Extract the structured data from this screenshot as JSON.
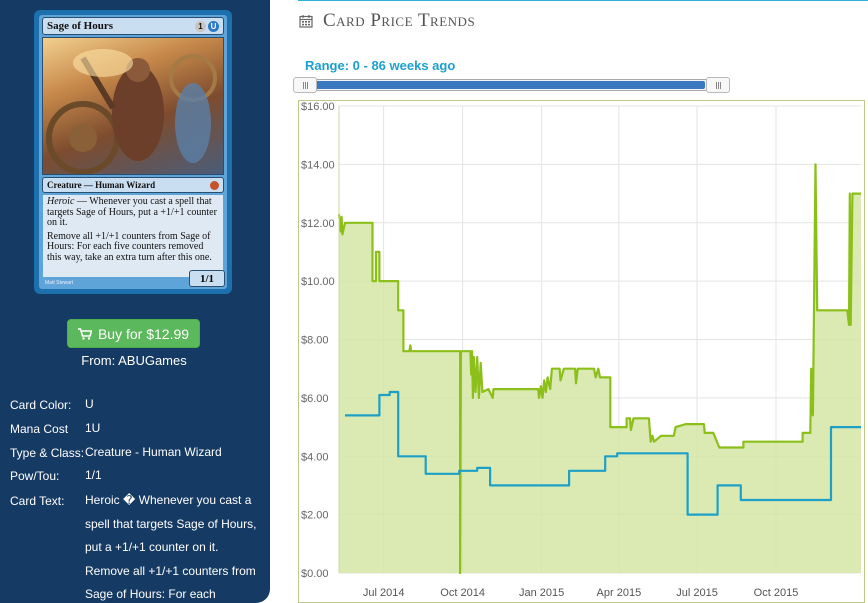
{
  "card": {
    "name": "Sage of Hours",
    "mana_symbols": [
      "1",
      "U"
    ],
    "type_line": "Creature — Human Wizard",
    "rules_text_1_keyword": "Heroic",
    "rules_text_1": " — Whenever you cast a spell that targets Sage of Hours, put a +1/+1 counter on it.",
    "rules_text_2": "Remove all +1/+1 counters from Sage of Hours: For each five counters removed this way, take an extra turn after this one.",
    "pt": "1/1",
    "artist": "Matt Stewart"
  },
  "buy": {
    "label": "Buy for $12.99",
    "from": "From: ABUGames"
  },
  "info": [
    {
      "label": "Card Color:",
      "value": "U"
    },
    {
      "label": "Mana Cost",
      "value": "1U"
    },
    {
      "label": "Type & Class:",
      "value": "Creature - Human Wizard"
    },
    {
      "label": "Pow/Tou:",
      "value": "1/1"
    },
    {
      "label": "Card Text:",
      "value": "Heroic � Whenever you cast a spell that targets Sage of Hours, put a +1/+1 counter on it. Remove all +1/+1 counters from Sage of Hours: For each"
    }
  ],
  "header": {
    "title": "Card Price Trends",
    "icon": "calendar-icon"
  },
  "range": {
    "label": "Range: 0 - 86 weeks ago",
    "min": 0,
    "max": 86
  },
  "colors": {
    "sidebar": "#153a63",
    "buy": "#5cb85c",
    "accent": "#1ea0cf",
    "green_series": "#8cbf1a",
    "green_fill": "#d3e6a4",
    "blue_series": "#1ea0c6"
  },
  "chart_data": {
    "type": "line",
    "x_axis": {
      "type": "date",
      "ticks": [
        "Jul 2014",
        "Oct 2014",
        "Jan 2015",
        "Apr 2015",
        "Jul 2015",
        "Oct 2015"
      ],
      "tick_dates": [
        "2014-07-01",
        "2014-10-01",
        "2015-01-01",
        "2015-04-01",
        "2015-07-01",
        "2015-10-01"
      ],
      "range": [
        "2014-05-10",
        "2016-01-08"
      ]
    },
    "y_axis": {
      "range": [
        0,
        16
      ],
      "ticks": [
        "$0.00",
        "$2.00",
        "$4.00",
        "$6.00",
        "$8.00",
        "$10.00",
        "$12.00",
        "$14.00",
        "$16.00"
      ],
      "format": "dollar"
    },
    "grid": true,
    "series": [
      {
        "filled": true,
        "color": "#8cbf1a",
        "points": [
          [
            "2014-05-10",
            12.3
          ],
          [
            "2014-05-12",
            11.7
          ],
          [
            "2014-05-13",
            12.2
          ],
          [
            "2014-05-14",
            11.6
          ],
          [
            "2014-05-17",
            12.0
          ],
          [
            "2014-06-18",
            12.0
          ],
          [
            "2014-06-18",
            10.0
          ],
          [
            "2014-06-22",
            10.0
          ],
          [
            "2014-06-22",
            11.0
          ],
          [
            "2014-06-26",
            11.0
          ],
          [
            "2014-06-26",
            10.0
          ],
          [
            "2014-07-18",
            10.0
          ],
          [
            "2014-07-18",
            9.0
          ],
          [
            "2014-07-24",
            9.0
          ],
          [
            "2014-07-24",
            7.6
          ],
          [
            "2014-07-31",
            7.6
          ],
          [
            "2014-08-01",
            7.8
          ],
          [
            "2014-08-02",
            7.6
          ],
          [
            "2014-09-28",
            7.6
          ],
          [
            "2014-09-28",
            0.0
          ],
          [
            "2014-09-29",
            7.6
          ],
          [
            "2014-10-10",
            7.6
          ],
          [
            "2014-10-11",
            6.8
          ],
          [
            "2014-10-12",
            7.6
          ],
          [
            "2014-10-13",
            6.0
          ],
          [
            "2014-10-14",
            7.4
          ],
          [
            "2014-10-16",
            6.2
          ],
          [
            "2014-10-18",
            7.4
          ],
          [
            "2014-10-20",
            6.0
          ],
          [
            "2014-10-22",
            7.2
          ],
          [
            "2014-10-24",
            6.2
          ],
          [
            "2014-10-31",
            6.3
          ],
          [
            "2014-11-05",
            6.0
          ],
          [
            "2014-11-06",
            6.3
          ],
          [
            "2014-12-28",
            6.3
          ],
          [
            "2014-12-29",
            6.0
          ],
          [
            "2014-12-31",
            6.4
          ],
          [
            "2015-01-02",
            6.0
          ],
          [
            "2015-01-04",
            6.6
          ],
          [
            "2015-01-06",
            6.2
          ],
          [
            "2015-01-08",
            6.7
          ],
          [
            "2015-01-11",
            6.3
          ],
          [
            "2015-01-13",
            7.0
          ],
          [
            "2015-01-22",
            7.0
          ],
          [
            "2015-01-23",
            6.6
          ],
          [
            "2015-01-27",
            7.0
          ],
          [
            "2015-02-09",
            7.0
          ],
          [
            "2015-02-10",
            6.5
          ],
          [
            "2015-02-12",
            7.0
          ],
          [
            "2015-03-03",
            7.0
          ],
          [
            "2015-03-05",
            6.7
          ],
          [
            "2015-03-08",
            7.0
          ],
          [
            "2015-03-10",
            6.7
          ],
          [
            "2015-03-22",
            6.7
          ],
          [
            "2015-03-22",
            5.0
          ],
          [
            "2015-04-10",
            5.0
          ],
          [
            "2015-04-10",
            5.3
          ],
          [
            "2015-04-14",
            5.3
          ],
          [
            "2015-04-15",
            4.9
          ],
          [
            "2015-04-18",
            5.3
          ],
          [
            "2015-05-06",
            5.3
          ],
          [
            "2015-05-08",
            4.5
          ],
          [
            "2015-05-10",
            4.7
          ],
          [
            "2015-05-12",
            4.5
          ],
          [
            "2015-05-20",
            4.7
          ],
          [
            "2015-06-04",
            4.7
          ],
          [
            "2015-06-06",
            5.0
          ],
          [
            "2015-06-18",
            5.1
          ],
          [
            "2015-07-09",
            5.1
          ],
          [
            "2015-07-10",
            4.8
          ],
          [
            "2015-07-20",
            4.8
          ],
          [
            "2015-07-27",
            4.3
          ],
          [
            "2015-08-24",
            4.3
          ],
          [
            "2015-08-24",
            4.5
          ],
          [
            "2015-11-01",
            4.5
          ],
          [
            "2015-11-01",
            4.8
          ],
          [
            "2015-11-10",
            4.8
          ],
          [
            "2015-11-11",
            7.0
          ],
          [
            "2015-11-13",
            5.4
          ],
          [
            "2015-11-16",
            14.0
          ],
          [
            "2015-11-18",
            9.0
          ],
          [
            "2015-12-23",
            9.0
          ],
          [
            "2015-12-25",
            8.5
          ],
          [
            "2015-12-26",
            13.0
          ],
          [
            "2015-12-27",
            8.5
          ],
          [
            "2015-12-29",
            13.0
          ],
          [
            "2016-01-08",
            13.0
          ]
        ]
      },
      {
        "filled": false,
        "color": "#1ea0c6",
        "points": [
          [
            "2014-05-17",
            5.4
          ],
          [
            "2014-06-26",
            5.4
          ],
          [
            "2014-06-26",
            6.1
          ],
          [
            "2014-07-08",
            6.1
          ],
          [
            "2014-07-08",
            6.2
          ],
          [
            "2014-07-18",
            6.2
          ],
          [
            "2014-07-18",
            4.0
          ],
          [
            "2014-08-19",
            4.0
          ],
          [
            "2014-08-19",
            3.4
          ],
          [
            "2014-09-27",
            3.4
          ],
          [
            "2014-09-27",
            3.5
          ],
          [
            "2014-10-18",
            3.5
          ],
          [
            "2014-10-18",
            3.6
          ],
          [
            "2014-11-02",
            3.6
          ],
          [
            "2014-11-02",
            3.0
          ],
          [
            "2015-02-02",
            3.0
          ],
          [
            "2015-02-02",
            3.5
          ],
          [
            "2015-03-16",
            3.5
          ],
          [
            "2015-03-16",
            4.0
          ],
          [
            "2015-03-30",
            4.0
          ],
          [
            "2015-03-30",
            4.1
          ],
          [
            "2015-06-20",
            4.1
          ],
          [
            "2015-06-20",
            2.0
          ],
          [
            "2015-07-25",
            2.0
          ],
          [
            "2015-07-25",
            3.0
          ],
          [
            "2015-08-21",
            3.0
          ],
          [
            "2015-08-21",
            2.5
          ],
          [
            "2015-12-04",
            2.5
          ],
          [
            "2015-12-04",
            5.0
          ],
          [
            "2016-01-08",
            5.0
          ]
        ]
      }
    ]
  }
}
